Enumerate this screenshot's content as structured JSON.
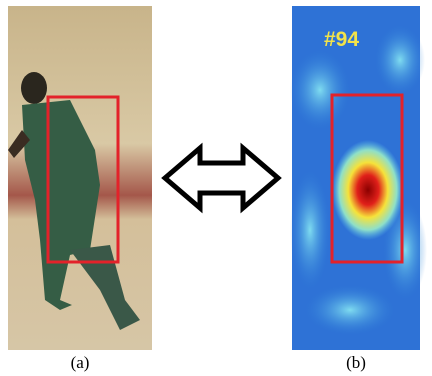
{
  "panels": [
    {
      "caption": "(a)"
    },
    {
      "caption": "(b)",
      "label": "#94"
    }
  ]
}
